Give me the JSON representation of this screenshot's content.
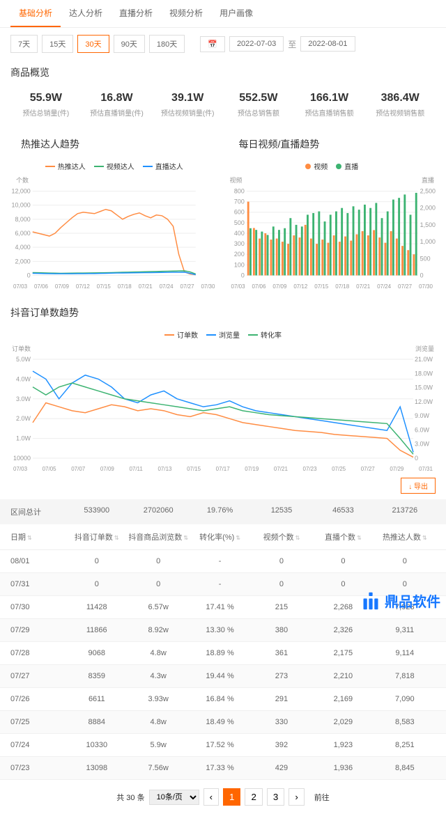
{
  "tabs": [
    "基础分析",
    "达人分析",
    "直播分析",
    "视频分析",
    "用户画像"
  ],
  "activeTab": 0,
  "dayBtns": [
    "7天",
    "15天",
    "30天",
    "90天",
    "180天"
  ],
  "activeDay": 2,
  "dateFrom": "2022-07-03",
  "dateTo": "2022-08-01",
  "dateSep": "至",
  "overviewTitle": "商品概览",
  "stats": [
    {
      "val": "55.9W",
      "lbl": "预估总销量(件)"
    },
    {
      "val": "16.8W",
      "lbl": "预估直播销量(件)"
    },
    {
      "val": "39.1W",
      "lbl": "预估视频销量(件)"
    },
    {
      "val": "552.5W",
      "lbl": "预估总销售额"
    },
    {
      "val": "166.1W",
      "lbl": "预估直播销售额"
    },
    {
      "val": "386.4W",
      "lbl": "预估视频销售额"
    }
  ],
  "chart1": {
    "title": "热推达人趋势",
    "legend": [
      {
        "name": "热推达人",
        "color": "#ff8c42"
      },
      {
        "name": "视频达人",
        "color": "#3cb371"
      },
      {
        "name": "直播达人",
        "color": "#1e90ff"
      }
    ],
    "yLabel": "个数",
    "yTicks": [
      "0",
      "2,000",
      "4,000",
      "6,000",
      "8,000",
      "10,000",
      "12,000"
    ],
    "xTicks": [
      "07/03",
      "07/06",
      "07/09",
      "07/12",
      "07/15",
      "07/18",
      "07/21",
      "07/24",
      "07/27",
      "07/30"
    ],
    "series1": [
      6200,
      6000,
      5800,
      5600,
      6000,
      6800,
      7500,
      8200,
      8800,
      9000,
      8900,
      8800,
      9100,
      9400,
      9200,
      8600,
      8000,
      8400,
      8700,
      8900,
      8500,
      8200,
      8600,
      8500,
      8000,
      7000,
      3000,
      500,
      200,
      100
    ],
    "series2": [
      400,
      380,
      360,
      340,
      320,
      300,
      310,
      320,
      330,
      340,
      350,
      360,
      370,
      380,
      400,
      420,
      440,
      460,
      480,
      500,
      520,
      540,
      560,
      580,
      600,
      620,
      640,
      660,
      500,
      200
    ],
    "series3": [
      300,
      280,
      260,
      250,
      240,
      230,
      235,
      240,
      245,
      250,
      255,
      260,
      280,
      300,
      320,
      340,
      350,
      360,
      370,
      380,
      390,
      400,
      410,
      420,
      430,
      440,
      450,
      460,
      300,
      100
    ],
    "gridColor": "#eee",
    "yMax": 12000
  },
  "chart2": {
    "title": "每日视频/直播趋势",
    "legend": [
      {
        "name": "视频",
        "color": "#ff8c42"
      },
      {
        "name": "直播",
        "color": "#3cb371"
      }
    ],
    "yLeftLabel": "视频",
    "yRightLabel": "直播",
    "yLeftTicks": [
      "0",
      "100",
      "200",
      "300",
      "400",
      "500",
      "600",
      "700",
      "800"
    ],
    "yRightTicks": [
      "0",
      "500",
      "1,000",
      "1,500",
      "2,000",
      "2,500"
    ],
    "xTicks": [
      "07/03",
      "07/06",
      "07/09",
      "07/12",
      "07/15",
      "07/18",
      "07/21",
      "07/24",
      "07/27",
      "07/30"
    ],
    "bars1": [
      700,
      450,
      350,
      400,
      340,
      350,
      320,
      300,
      380,
      360,
      480,
      350,
      300,
      340,
      310,
      380,
      320,
      370,
      330,
      390,
      420,
      380,
      430,
      360,
      310,
      420,
      350,
      280,
      240,
      200
    ],
    "bars2": [
      1400,
      1350,
      1300,
      1200,
      1450,
      1350,
      1400,
      1700,
      1500,
      1450,
      1800,
      1850,
      1900,
      1600,
      1800,
      1900,
      2000,
      1850,
      2050,
      1950,
      2100,
      2000,
      2150,
      1700,
      1900,
      2250,
      2300,
      2400,
      1800,
      2450
    ],
    "y1Max": 800,
    "y2Max": 2500
  },
  "chart3": {
    "title": "抖音订单数趋势",
    "legend": [
      {
        "name": "订单数",
        "color": "#ff8c42"
      },
      {
        "name": "浏览量",
        "color": "#1e90ff"
      },
      {
        "name": "转化率",
        "color": "#3cb371"
      }
    ],
    "yLeftLabel": "订单数",
    "yRightLabel": "浏览量",
    "yLeftTicks": [
      "10000",
      "1.0W",
      "2.0W",
      "3.0W",
      "4.0W",
      "5.0W"
    ],
    "yRightTicks": [
      "0",
      "3.0W",
      "6.0W",
      "9.0W",
      "12.0W",
      "15.0W",
      "18.0W",
      "21.0W"
    ],
    "xTicks": [
      "07/03",
      "07/05",
      "07/07",
      "07/09",
      "07/11",
      "07/13",
      "07/15",
      "07/17",
      "07/19",
      "07/21",
      "07/23",
      "07/25",
      "07/27",
      "07/29",
      "07/31"
    ],
    "s1": [
      18000,
      28000,
      26000,
      24000,
      23000,
      25000,
      27000,
      26000,
      24000,
      25000,
      24000,
      22000,
      21000,
      23000,
      22000,
      20000,
      18000,
      17000,
      16000,
      15000,
      14000,
      13500,
      13000,
      12000,
      11500,
      11000,
      10500,
      10000,
      4000,
      500
    ],
    "s2": [
      44000,
      40000,
      30000,
      38000,
      42000,
      40000,
      36000,
      30000,
      28000,
      32000,
      34000,
      30000,
      28000,
      26000,
      27000,
      29000,
      26000,
      24000,
      23000,
      22000,
      21000,
      20000,
      19000,
      18000,
      17000,
      16000,
      15000,
      14000,
      26000,
      3000
    ],
    "s3": [
      36000,
      32000,
      36000,
      38000,
      36000,
      34000,
      32000,
      30000,
      29000,
      28000,
      27000,
      26000,
      25000,
      24000,
      25000,
      26000,
      24000,
      23000,
      22000,
      21500,
      21000,
      20500,
      20000,
      19500,
      19000,
      18500,
      18000,
      17500,
      10000,
      2000
    ],
    "yMax": 50000,
    "y2Max": 210000
  },
  "exportBtn": "↓ 导出",
  "summaryRow": {
    "label": "区间总计",
    "vals": [
      "533900",
      "2702060",
      "19.76%",
      "12535",
      "46533",
      "213726"
    ]
  },
  "columns": [
    "日期",
    "抖音订单数",
    "抖音商品浏览数",
    "转化率(%)",
    "视频个数",
    "直播个数",
    "热推达人数"
  ],
  "rows": [
    [
      "08/01",
      "0",
      "0",
      "-",
      "0",
      "0",
      "0"
    ],
    [
      "07/31",
      "0",
      "0",
      "-",
      "0",
      "0",
      "0"
    ],
    [
      "07/30",
      "11428",
      "6.57w",
      "17.41 %",
      "215",
      "2,268",
      "7,923"
    ],
    [
      "07/29",
      "11866",
      "8.92w",
      "13.30 %",
      "380",
      "2,326",
      "9,311"
    ],
    [
      "07/28",
      "9068",
      "4.8w",
      "18.89 %",
      "361",
      "2,175",
      "9,114"
    ],
    [
      "07/27",
      "8359",
      "4.3w",
      "19.44 %",
      "273",
      "2,210",
      "7,818"
    ],
    [
      "07/26",
      "6611",
      "3.93w",
      "16.84 %",
      "291",
      "2,169",
      "7,090"
    ],
    [
      "07/25",
      "8884",
      "4.8w",
      "18.49 %",
      "330",
      "2,029",
      "8,583"
    ],
    [
      "07/24",
      "10330",
      "5.9w",
      "17.52 %",
      "392",
      "1,923",
      "8,251"
    ],
    [
      "07/23",
      "13098",
      "7.56w",
      "17.33 %",
      "429",
      "1,936",
      "8,845"
    ]
  ],
  "pager": {
    "total": "共 30 条",
    "pageSize": "10条/页",
    "pages": [
      "1",
      "2",
      "3"
    ],
    "active": 0,
    "goto": "前往"
  },
  "watermark": "鼎品软件"
}
